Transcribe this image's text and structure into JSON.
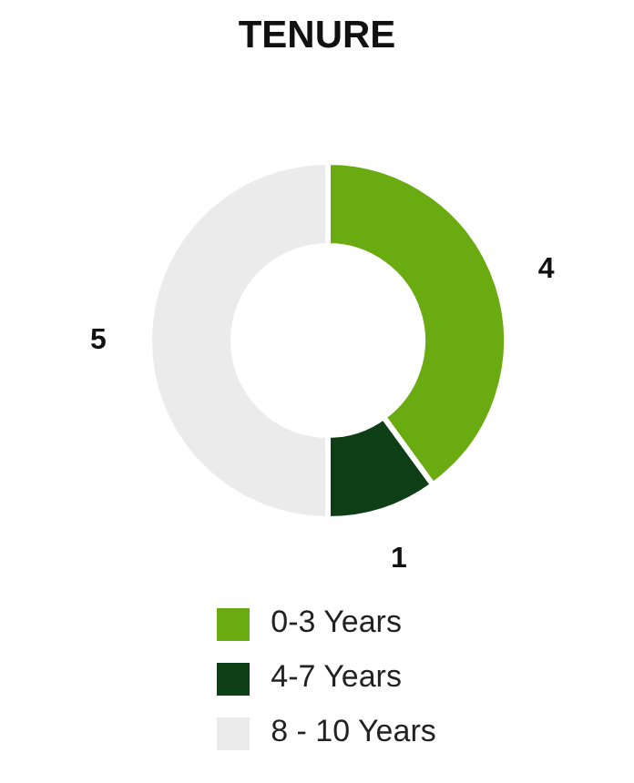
{
  "chart_data": {
    "type": "donut",
    "title": "TENURE",
    "categories": [
      "0-3 Years",
      "4-7 Years",
      "8 - 10 Years"
    ],
    "values": [
      4,
      1,
      5
    ],
    "colors": [
      "#6aab12",
      "#0e3e15",
      "#ebebeb"
    ],
    "data_labels": true,
    "legend": "bottom"
  }
}
